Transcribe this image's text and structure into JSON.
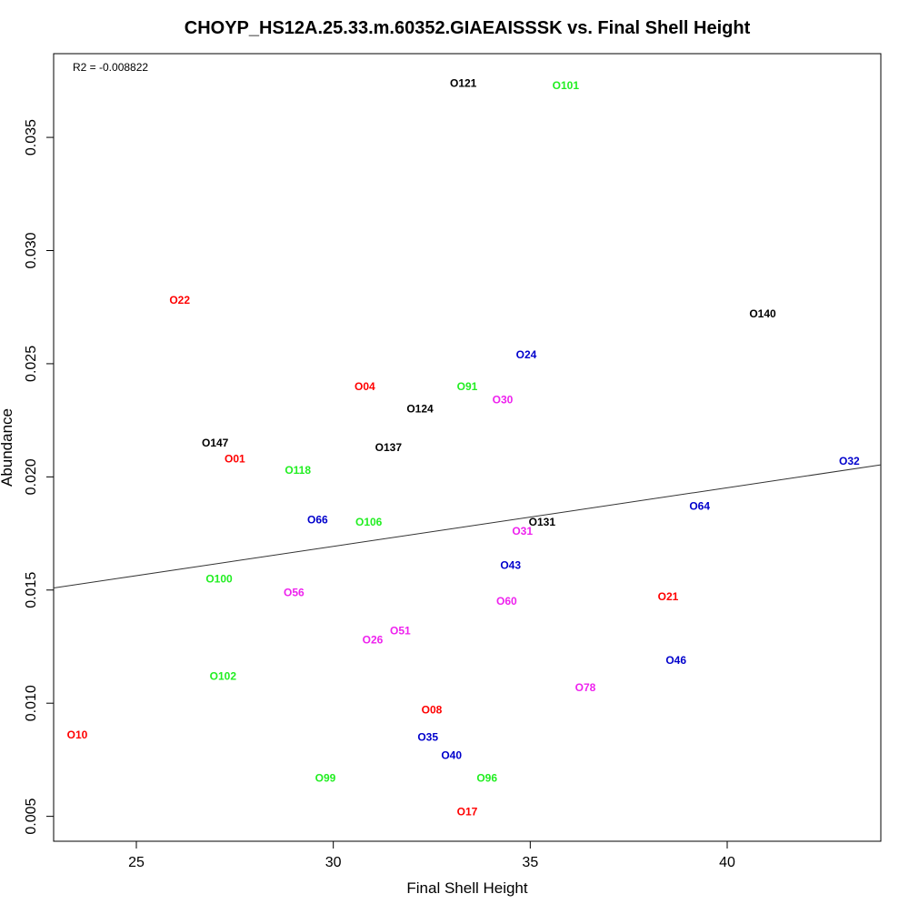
{
  "chart_data": {
    "type": "scatter",
    "title": "CHOYP_HS12A.25.33.m.60352.GIAEAISSSK vs. Final Shell Height",
    "xlabel": "Final Shell Height",
    "ylabel": "Abundance",
    "xlim": [
      22.9,
      43.9
    ],
    "ylim": [
      0.0039,
      0.0387
    ],
    "xticks": [
      25,
      30,
      35,
      40
    ],
    "yticks": [
      0.005,
      0.01,
      0.015,
      0.02,
      0.025,
      0.03,
      0.035
    ],
    "xtick_labels": [
      "25",
      "30",
      "35",
      "40"
    ],
    "ytick_labels": [
      "0.005",
      "0.010",
      "0.015",
      "0.020",
      "0.025",
      "0.030",
      "0.035"
    ],
    "annotation": "R2 = -0.008822",
    "regression_line": {
      "x": [
        22.9,
        43.9
      ],
      "y": [
        0.01509,
        0.02053
      ]
    },
    "colors": {
      "red": "#ff0000",
      "green": "#22ee22",
      "blue": "#0000cc",
      "magenta": "#ee22ee",
      "black": "#000000"
    },
    "points": [
      {
        "label": "O10",
        "x": 23.5,
        "y": 0.0086,
        "color": "red"
      },
      {
        "label": "O22",
        "x": 26.1,
        "y": 0.0278,
        "color": "red"
      },
      {
        "label": "O01",
        "x": 27.5,
        "y": 0.0208,
        "color": "red"
      },
      {
        "label": "O04",
        "x": 30.8,
        "y": 0.024,
        "color": "red"
      },
      {
        "label": "O08",
        "x": 32.5,
        "y": 0.0097,
        "color": "red"
      },
      {
        "label": "O17",
        "x": 33.4,
        "y": 0.0052,
        "color": "red"
      },
      {
        "label": "O21",
        "x": 38.5,
        "y": 0.0147,
        "color": "red"
      },
      {
        "label": "O100",
        "x": 27.1,
        "y": 0.0155,
        "color": "green"
      },
      {
        "label": "O102",
        "x": 27.2,
        "y": 0.0112,
        "color": "green"
      },
      {
        "label": "O118",
        "x": 29.1,
        "y": 0.0203,
        "color": "green"
      },
      {
        "label": "O99",
        "x": 29.8,
        "y": 0.0067,
        "color": "green"
      },
      {
        "label": "O106",
        "x": 30.9,
        "y": 0.018,
        "color": "green"
      },
      {
        "label": "O91",
        "x": 33.4,
        "y": 0.024,
        "color": "green"
      },
      {
        "label": "O96",
        "x": 33.9,
        "y": 0.0067,
        "color": "green"
      },
      {
        "label": "O101",
        "x": 35.9,
        "y": 0.0373,
        "color": "green"
      },
      {
        "label": "O66",
        "x": 29.6,
        "y": 0.0181,
        "color": "blue"
      },
      {
        "label": "O35",
        "x": 32.4,
        "y": 0.0085,
        "color": "blue"
      },
      {
        "label": "O40",
        "x": 33.0,
        "y": 0.0077,
        "color": "blue"
      },
      {
        "label": "O43",
        "x": 34.5,
        "y": 0.0161,
        "color": "blue"
      },
      {
        "label": "O24",
        "x": 34.9,
        "y": 0.0254,
        "color": "blue"
      },
      {
        "label": "O46",
        "x": 38.7,
        "y": 0.0119,
        "color": "blue"
      },
      {
        "label": "O64",
        "x": 39.3,
        "y": 0.0187,
        "color": "blue"
      },
      {
        "label": "O32",
        "x": 43.1,
        "y": 0.0207,
        "color": "blue"
      },
      {
        "label": "O56",
        "x": 29.0,
        "y": 0.0149,
        "color": "magenta"
      },
      {
        "label": "O26",
        "x": 31.0,
        "y": 0.0128,
        "color": "magenta"
      },
      {
        "label": "O51",
        "x": 31.7,
        "y": 0.0132,
        "color": "magenta"
      },
      {
        "label": "O30",
        "x": 34.3,
        "y": 0.0234,
        "color": "magenta"
      },
      {
        "label": "O60",
        "x": 34.4,
        "y": 0.0145,
        "color": "magenta"
      },
      {
        "label": "O31",
        "x": 34.8,
        "y": 0.0176,
        "color": "magenta"
      },
      {
        "label": "O78",
        "x": 36.4,
        "y": 0.0107,
        "color": "magenta"
      },
      {
        "label": "O147",
        "x": 27.0,
        "y": 0.0215,
        "color": "black"
      },
      {
        "label": "O137",
        "x": 31.4,
        "y": 0.0213,
        "color": "black"
      },
      {
        "label": "O124",
        "x": 32.2,
        "y": 0.023,
        "color": "black"
      },
      {
        "label": "O121",
        "x": 33.3,
        "y": 0.0374,
        "color": "black"
      },
      {
        "label": "O131",
        "x": 35.3,
        "y": 0.018,
        "color": "black"
      },
      {
        "label": "O140",
        "x": 40.9,
        "y": 0.0272,
        "color": "black"
      }
    ]
  }
}
